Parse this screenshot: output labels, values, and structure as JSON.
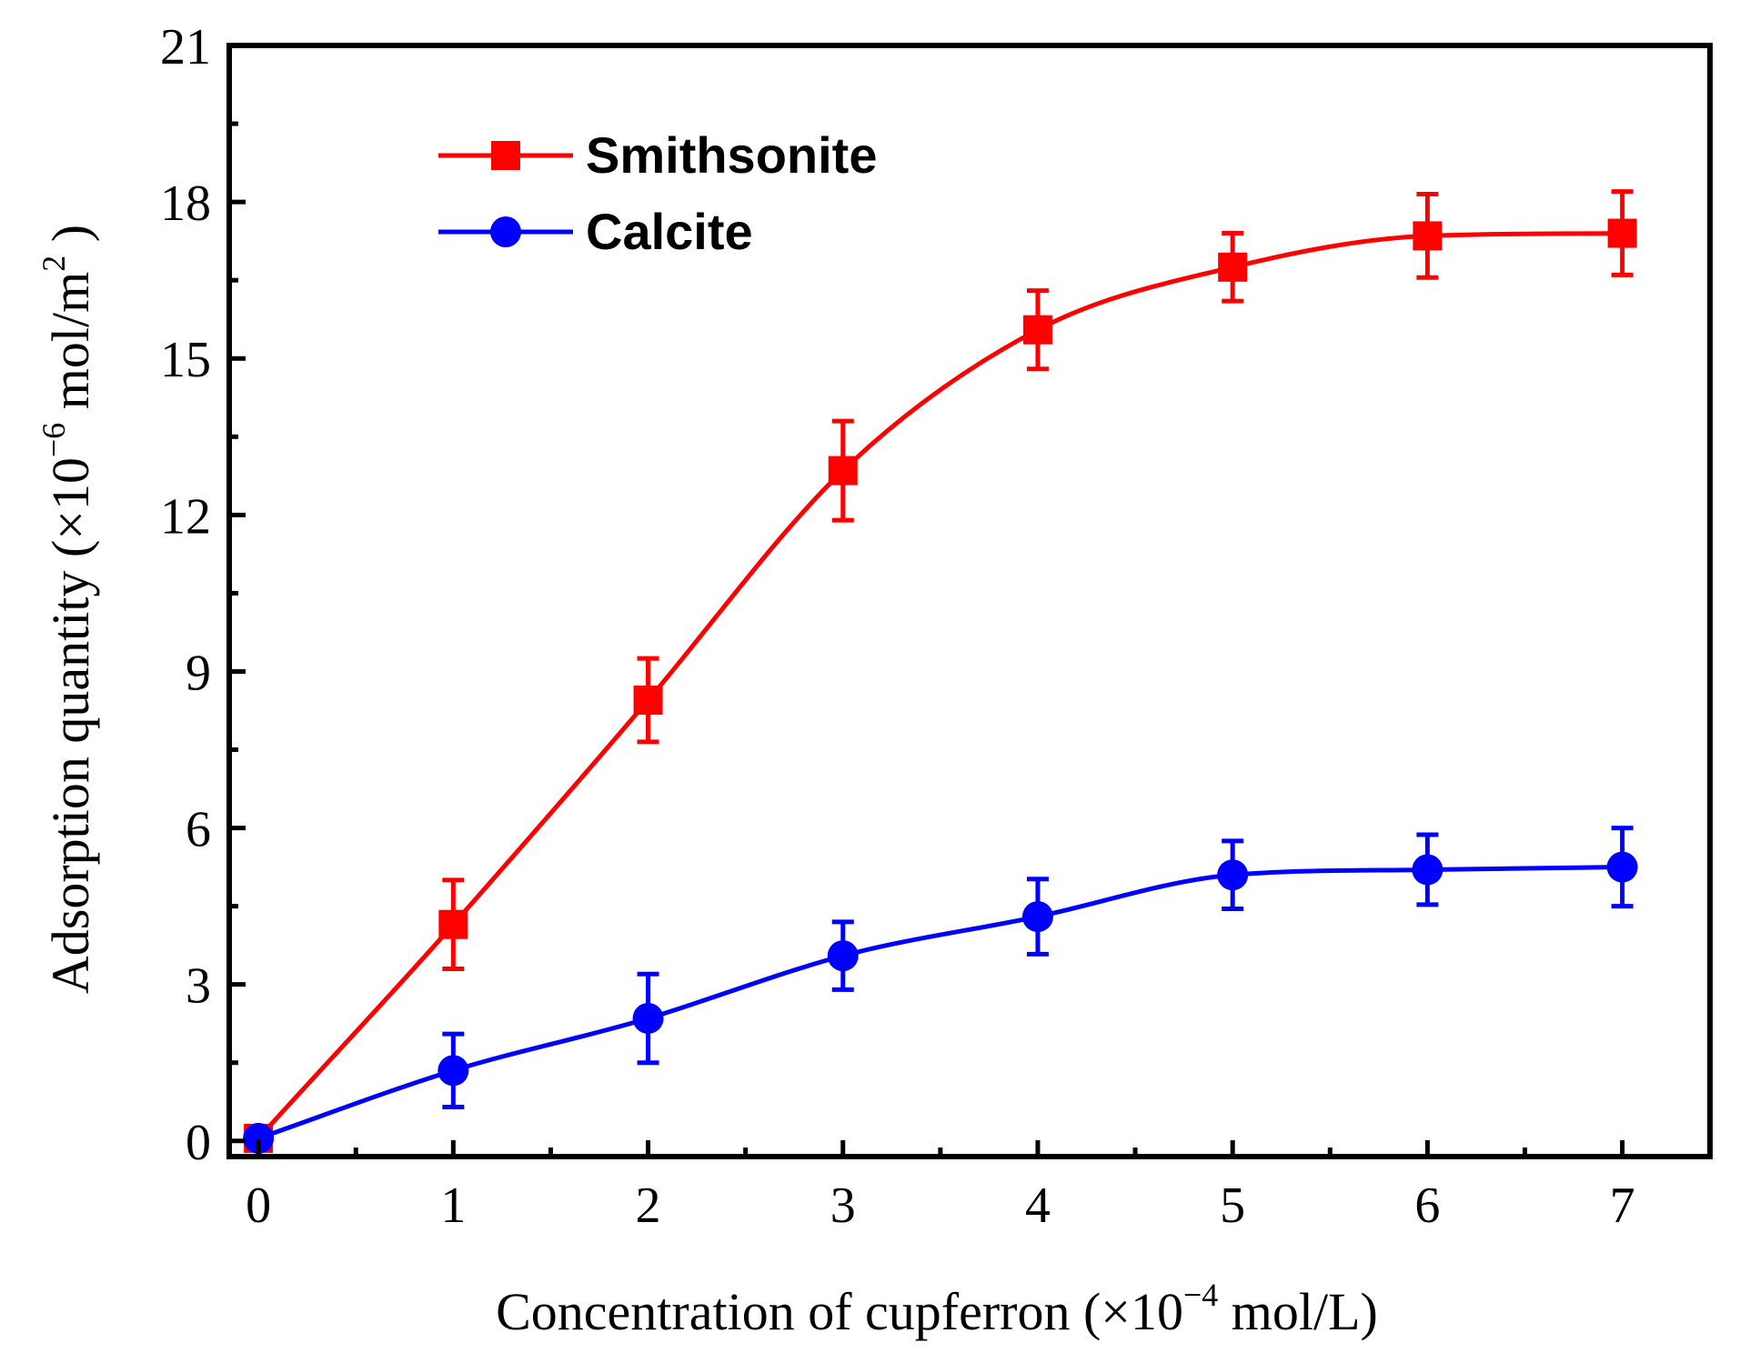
{
  "chart_data": {
    "type": "line",
    "title": "",
    "xlabel": "Concentration of cupferron (×10⁻⁴ mol/L)",
    "xlabel_parts": {
      "prefix": "Concentration of cupferron (×10",
      "exponent": "−4",
      "suffix": " mol/L)"
    },
    "ylabel": "Adsorption quantity (×10⁻⁶ mol/m²)",
    "ylabel_parts": {
      "prefix": "Adsorption quantity (×10",
      "exponent": "−6",
      "middle": " mol/m",
      "exponent2": "2",
      "suffix": " )"
    },
    "xlim": [
      -0.15,
      7.45
    ],
    "ylim": [
      -0.3,
      21
    ],
    "x_ticks": [
      0,
      1,
      2,
      3,
      4,
      5,
      6,
      7
    ],
    "y_ticks": [
      0,
      3,
      6,
      9,
      12,
      15,
      18,
      21
    ],
    "grid": false,
    "legend_position": "top-left",
    "series": [
      {
        "name": "Smithsonite",
        "color": "#ff0000",
        "marker": "square",
        "x": [
          0,
          1,
          2,
          3,
          4,
          5,
          6,
          7
        ],
        "values": [
          0.05,
          4.15,
          8.45,
          12.85,
          15.55,
          16.75,
          17.35,
          17.4
        ],
        "errors": [
          0,
          0.85,
          0.8,
          0.95,
          0.75,
          0.65,
          0.8,
          0.8
        ]
      },
      {
        "name": "Calcite",
        "color": "#0000ff",
        "marker": "circle",
        "x": [
          0,
          1,
          2,
          3,
          4,
          5,
          6,
          7
        ],
        "values": [
          0.05,
          1.35,
          2.35,
          3.55,
          4.3,
          5.1,
          5.2,
          5.25
        ],
        "errors": [
          0,
          0.7,
          0.85,
          0.65,
          0.72,
          0.65,
          0.67,
          0.75
        ]
      }
    ]
  }
}
